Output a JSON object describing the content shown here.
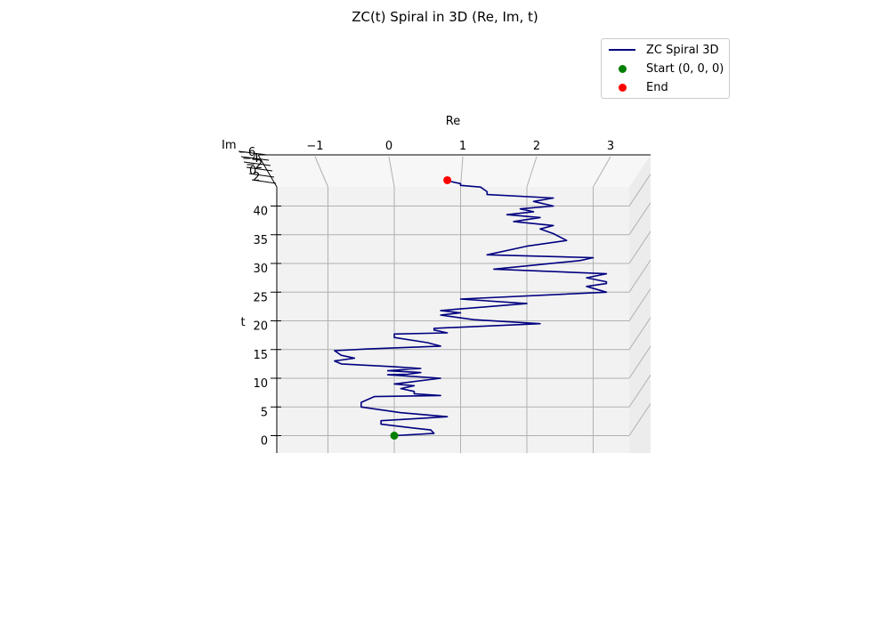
{
  "chart_data": {
    "type": "line3d",
    "title": "ZC(t) Spiral in 3D (Re, Im, t)",
    "xlabel": "Re",
    "ylabel": "Im",
    "zlabel": "t",
    "x_ticks": [
      "−1",
      "0",
      "1",
      "2",
      "3"
    ],
    "x_tick_values": [
      -1,
      0,
      1,
      2,
      3
    ],
    "t_ticks": [
      "0",
      "5",
      "10",
      "15",
      "20",
      "25",
      "30",
      "35",
      "40"
    ],
    "t_tick_values": [
      0,
      5,
      10,
      15,
      20,
      25,
      30,
      35,
      40
    ],
    "im_ticks": [
      "−6",
      "−4",
      "−2",
      "0",
      "2"
    ],
    "xlim": [
      -1.6,
      3.4
    ],
    "zlim": [
      -3,
      44
    ],
    "legend_position": "upper right",
    "grid": true,
    "series": [
      {
        "name": "ZC Spiral 3D",
        "color": "#000080",
        "re": [
          0.0,
          0.6,
          0.55,
          0.3,
          -0.2,
          -0.2,
          0.4,
          0.8,
          0.1,
          -0.5,
          -0.5,
          -0.3,
          0.7,
          0.3,
          0.3,
          0.1,
          0.3,
          0.0,
          0.7,
          -0.1,
          0.2,
          0.4,
          -0.1,
          0.4,
          0.0,
          -0.8,
          -0.9,
          -0.6,
          -0.8,
          -0.9,
          -0.4,
          0.7,
          0.5,
          0.0,
          0.0,
          0.8,
          0.6,
          0.6,
          2.2,
          1.2,
          0.7,
          1.0,
          0.7,
          2.0,
          1.0,
          3.2,
          2.9,
          3.2,
          3.2,
          2.9,
          3.2,
          1.5,
          2.8,
          3.0,
          1.4,
          2.0,
          2.6,
          2.4,
          2.2,
          2.4,
          1.8,
          2.2,
          1.7,
          2.1,
          1.9,
          2.4,
          2.1,
          2.4,
          1.4,
          1.4,
          1.3,
          1.0,
          1.0,
          0.8
        ],
        "t": [
          0.0,
          0.4,
          1.0,
          1.3,
          2.0,
          2.6,
          3.0,
          3.3,
          4.0,
          5.0,
          5.8,
          6.8,
          7.0,
          7.3,
          7.7,
          8.2,
          8.7,
          9.0,
          10.0,
          10.6,
          10.7,
          11.0,
          11.3,
          11.7,
          12.0,
          12.5,
          13.0,
          13.5,
          14.0,
          14.8,
          15.1,
          15.6,
          16.2,
          17.1,
          17.7,
          17.9,
          18.4,
          18.7,
          19.5,
          20.2,
          21.0,
          21.4,
          21.8,
          23.0,
          23.8,
          25.0,
          26.0,
          26.5,
          26.8,
          27.5,
          28.2,
          29.0,
          30.5,
          31.0,
          31.5,
          33.0,
          34.0,
          35.2,
          36.0,
          36.6,
          37.3,
          38.0,
          38.5,
          39.0,
          39.5,
          40.0,
          40.8,
          41.4,
          42.0,
          42.5,
          43.3,
          43.6,
          43.9,
          44.4
        ]
      }
    ],
    "markers": [
      {
        "name": "Start (0, 0, 0)",
        "color": "#008000",
        "re": 0.0,
        "t": 0.0
      },
      {
        "name": "End",
        "color": "#ff0000",
        "re": 0.8,
        "t": 44.5
      }
    ]
  }
}
